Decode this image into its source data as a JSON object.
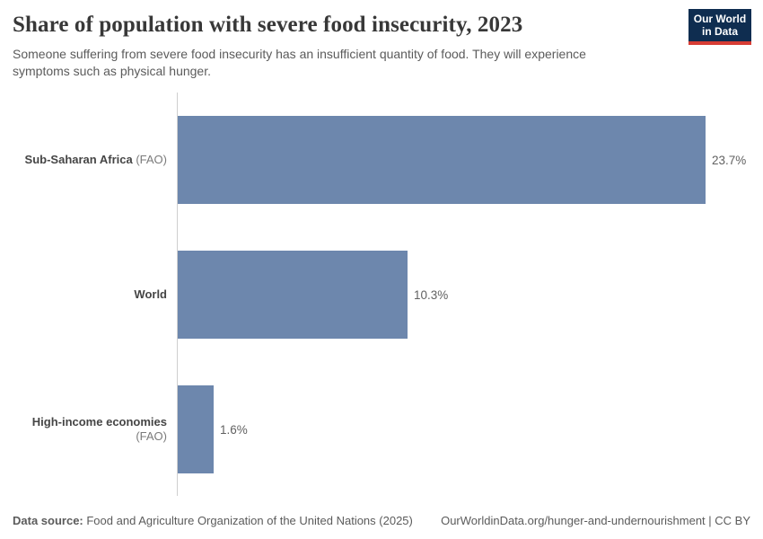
{
  "logo": {
    "line1": "Our World",
    "line2": "in Data"
  },
  "header": {
    "title": "Share of population with severe food insecurity, 2023",
    "subtitle": "Someone suffering from severe food insecurity has an insufficient quantity of food. They will experience symptoms such as physical hunger."
  },
  "chart_data": {
    "type": "bar",
    "orientation": "horizontal",
    "title": "Share of population with severe food insecurity, 2023",
    "categories": [
      "Sub-Saharan Africa (FAO)",
      "World",
      "High-income economies (FAO)"
    ],
    "values": [
      23.7,
      10.3,
      1.6
    ],
    "value_labels": [
      "23.7%",
      "10.3%",
      "1.6%"
    ],
    "unit": "%",
    "xlim": [
      0,
      23.7
    ],
    "grid": false,
    "legend": "none",
    "bar_color": "#6d87ad"
  },
  "bars": [
    {
      "name": "Sub-Saharan Africa",
      "suffix": " (FAO)",
      "value": 23.7,
      "label": "23.7%"
    },
    {
      "name": "World",
      "suffix": "",
      "value": 10.3,
      "label": "10.3%"
    },
    {
      "name": "High-income economies",
      "suffix": " (FAO)",
      "value": 1.6,
      "label": "1.6%"
    }
  ],
  "footer": {
    "source_label": "Data source:",
    "source_text": " Food and Agriculture Organization of the United Nations (2025)",
    "link_text": "OurWorldinData.org/hunger-and-undernourishment | CC BY"
  },
  "colors": {
    "bar": "#6d87ad",
    "axis_line": "#cfcfcf",
    "title_text": "#383838",
    "subtitle_text": "#5b5b5b",
    "logo_background": "#0f2d50",
    "logo_accent": "#d73c34"
  }
}
